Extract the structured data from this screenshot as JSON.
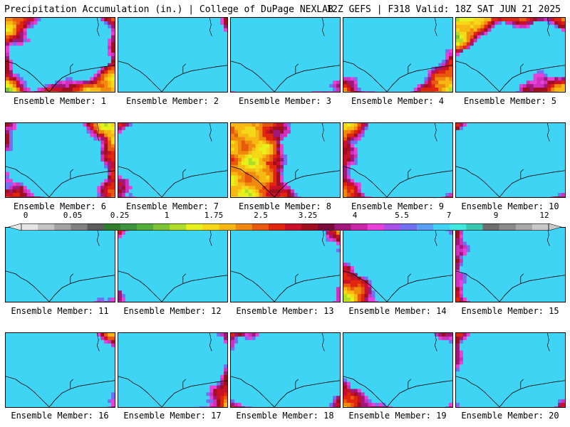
{
  "header": {
    "title": "Precipitation Accumulation (in.) | College of DuPage NEXLAB",
    "run_info": "12Z GEFS | F318 Valid: 18Z SAT JUN 21 2025"
  },
  "colorbar": {
    "tick_labels": [
      "0",
      "0.05",
      "0.25",
      "1",
      "1.75",
      "2.5",
      "3.25",
      "4",
      "5.5",
      "7",
      "9",
      "12"
    ],
    "colors": [
      "#e6e6e6",
      "#c4c4c4",
      "#a3a3a3",
      "#828282",
      "#5c5c5c",
      "#2f7f2f",
      "#3e943e",
      "#56ae3a",
      "#7cc431",
      "#aede2a",
      "#e7f21c",
      "#f7d819",
      "#f7b814",
      "#f08a0f",
      "#e8580d",
      "#e0260d",
      "#c8102a",
      "#a00f20",
      "#7a0a3a",
      "#a0187a",
      "#c828a8",
      "#e840d8",
      "#a850e8",
      "#7070f0",
      "#5aa0f4",
      "#40d4f4",
      "#40e8e0",
      "#38c8b0",
      "#6e6e6e",
      "#8a8a8a",
      "#a8a8a8",
      "#c8c8c8"
    ]
  },
  "panels": [
    {
      "label": "Ensemble Member: 1"
    },
    {
      "label": "Ensemble Member: 2"
    },
    {
      "label": "Ensemble Member: 3"
    },
    {
      "label": "Ensemble Member: 4"
    },
    {
      "label": "Ensemble Member: 5"
    },
    {
      "label": "Ensemble Member: 6"
    },
    {
      "label": "Ensemble Member: 7"
    },
    {
      "label": "Ensemble Member: 8"
    },
    {
      "label": "Ensemble Member: 9"
    },
    {
      "label": "Ensemble Member: 10"
    },
    {
      "label": "Ensemble Member: 11"
    },
    {
      "label": "Ensemble Member: 12"
    },
    {
      "label": "Ensemble Member: 13"
    },
    {
      "label": "Ensemble Member: 14"
    },
    {
      "label": "Ensemble Member: 15"
    },
    {
      "label": "Ensemble Member: 16"
    },
    {
      "label": "Ensemble Member: 17"
    },
    {
      "label": "Ensemble Member: 18"
    },
    {
      "label": "Ensemble Member: 19"
    },
    {
      "label": "Ensemble Member: 20"
    }
  ]
}
